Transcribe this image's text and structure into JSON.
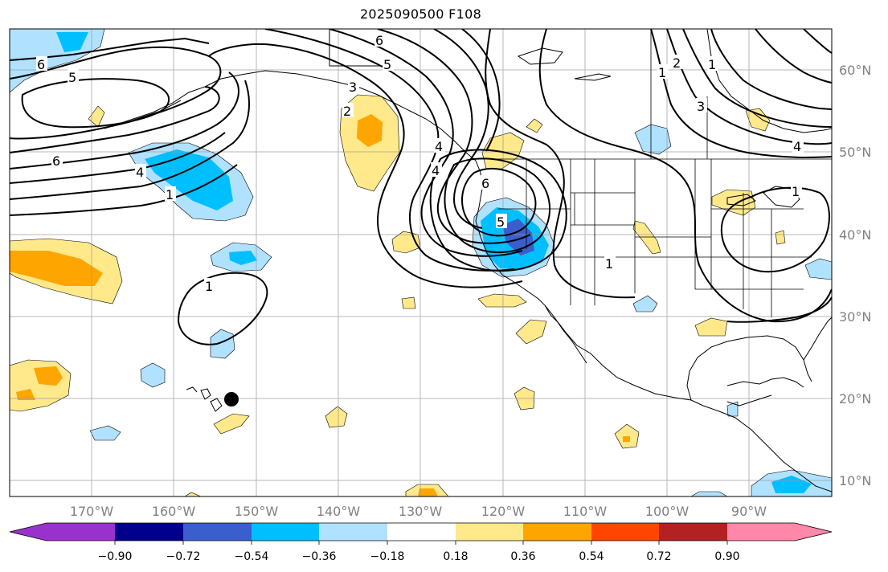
{
  "title": "2025090500 F108",
  "lon_labels": [
    "170°W",
    "160°W",
    "150°W",
    "140°W",
    "130°W",
    "120°W",
    "110°W",
    "100°W",
    "90°W"
  ],
  "lat_labels": [
    "60°N",
    "50°N",
    "40°N",
    "30°N",
    "20°N",
    "10°N"
  ],
  "colorbar": {
    "ticks": [
      "−0.90",
      "−0.72",
      "−0.54",
      "−0.36",
      "−0.18",
      "0.18",
      "0.36",
      "0.54",
      "0.72",
      "0.90"
    ],
    "colors": [
      "#9932cc",
      "#00008b",
      "#3a5fcd",
      "#00bfff",
      "#b0e2ff",
      "#ffffff",
      "#ffe98a",
      "#ffa500",
      "#ff4500",
      "#b22222",
      "#ff88aa"
    ]
  },
  "contour_labels": [
    "6",
    "5",
    "6",
    "5",
    "3",
    "2",
    "4",
    "1",
    "4",
    "1",
    "6",
    "4",
    "6",
    "5",
    "1",
    "1",
    "2",
    "3",
    "4",
    "1",
    "1"
  ],
  "marker": "storm-position-dot"
}
